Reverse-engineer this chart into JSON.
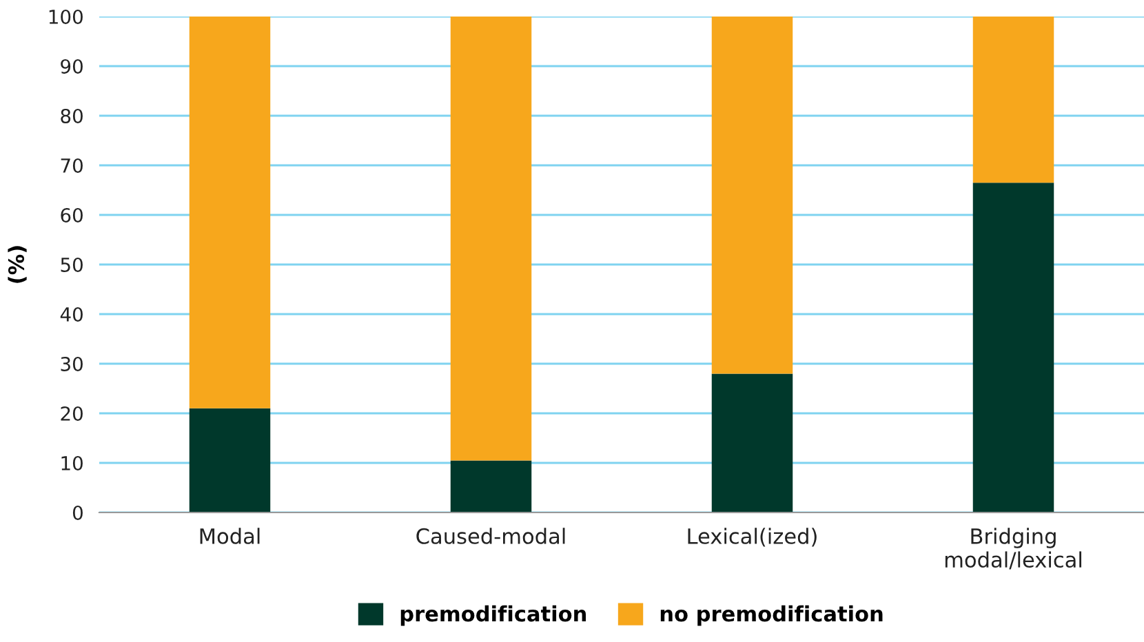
{
  "chart_data": {
    "type": "bar",
    "stacked": true,
    "ylabel": "(%)",
    "categories": [
      "Modal",
      "Caused-modal",
      "Lexical(ized)",
      "Bridging\nmodal/lexical"
    ],
    "series": [
      {
        "name": "premodification",
        "color": "#00382b",
        "values": [
          21,
          10.5,
          28,
          66.5
        ]
      },
      {
        "name": "no premodification",
        "color": "#f7a71c",
        "values": [
          79,
          89.5,
          72,
          33.5
        ]
      }
    ],
    "ylim": [
      0,
      100
    ],
    "yticks": [
      0,
      10,
      20,
      30,
      40,
      50,
      60,
      70,
      80,
      90,
      100
    ],
    "grid": "y",
    "legend": "bottom"
  }
}
